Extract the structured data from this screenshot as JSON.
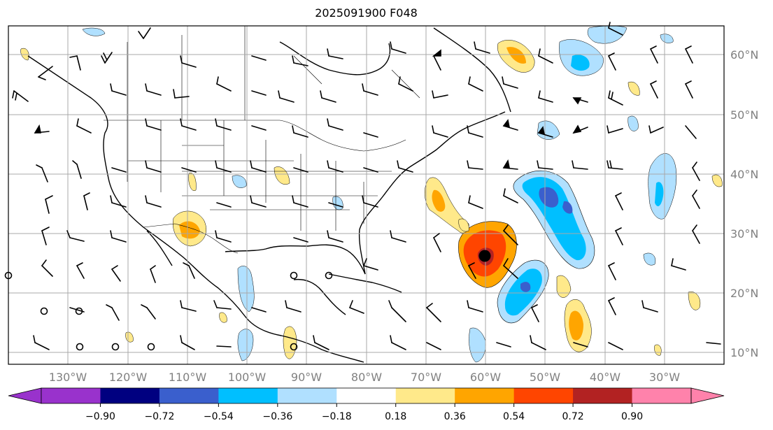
{
  "title": "2025091900 F048",
  "lat_labels": [
    "60°N",
    "50°N",
    "40°N",
    "30°N",
    "20°N",
    "10°N"
  ],
  "lon_labels": [
    "130°W",
    "120°W",
    "110°W",
    "100°W",
    "90°W",
    "80°W",
    "70°W",
    "60°W",
    "50°W",
    "40°W",
    "30°W"
  ],
  "colorbar": {
    "ticks": [
      "−0.90",
      "−0.72",
      "−0.54",
      "−0.36",
      "−0.18",
      "0.18",
      "0.36",
      "0.54",
      "0.72",
      "0.90"
    ],
    "colors": {
      "under": "#9932CC",
      "bins": [
        "#9932CC",
        "#000080",
        "#3A5FCD",
        "#00BFFF",
        "#B0E0FF",
        "#FFFFFF",
        "#FFE98A",
        "#FFA500",
        "#FF4500",
        "#B22222",
        "#FF82AB"
      ],
      "over": "#FF82AB"
    }
  },
  "colors": {
    "neg_light": "#B0E0FF",
    "neg_mid": "#00BFFF",
    "neg_deep": "#3A5FCD",
    "pos_light": "#FFE98A",
    "pos_mid": "#FFA500",
    "pos_strong": "#FF4500",
    "pos_deep": "#B22222",
    "grid": "#A8A8A8"
  }
}
